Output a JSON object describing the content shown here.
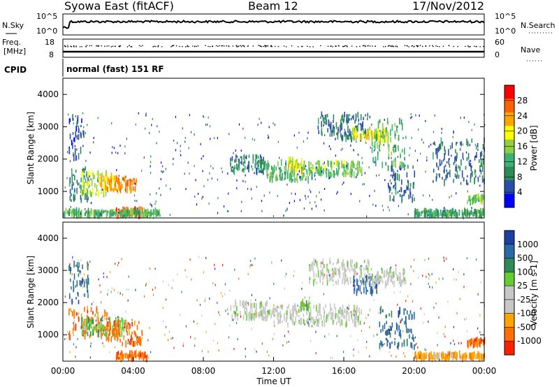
{
  "header": {
    "station": "Syowa East (fitACF)",
    "beam": "Beam 12",
    "date": "17/Nov/2012"
  },
  "noise_panel": {
    "left_label": "N.Sky",
    "left_ticks": [
      "10^5",
      "10^0"
    ],
    "right_label": "N.Search",
    "right_ticks": [
      "10^5",
      "10^0"
    ]
  },
  "freq_panel": {
    "left_label_1": "Freq.",
    "left_label_2": "[MHz]",
    "left_ticks": [
      "18",
      "8"
    ],
    "right_label": "Nave",
    "right_ticks": [
      "60",
      "0"
    ]
  },
  "cpid_panel": {
    "label": "CPID",
    "mode_text": "normal (fast) 151 RF"
  },
  "colors": {
    "scale_power": [
      "#0000ff",
      "#2b4fa8",
      "#2e8b57",
      "#3cb371",
      "#90d040",
      "#ffff00",
      "#ffa500",
      "#ff6000",
      "#ff0000"
    ],
    "scale_velocity": [
      "#1f3fa0",
      "#2b6aa8",
      "#2e8b57",
      "#66cc33",
      "#c8c8c8",
      "#c8c8c8",
      "#ffa500",
      "#ff7000",
      "#ff2000"
    ]
  },
  "chart_data": [
    {
      "type": "heatmap",
      "name": "Power",
      "ylabel": "Slant Range [km]",
      "xlabel": "",
      "yticks": [
        "1000",
        "2000",
        "3000",
        "4000"
      ],
      "ylim": [
        180,
        4500
      ],
      "colorbar_label": "Power [dB]",
      "colorbar_ticks": [
        "4",
        "8",
        "12",
        "16",
        "20",
        "24",
        "28"
      ],
      "colorbar_range": [
        0,
        30
      ],
      "regions": [
        {
          "t": [
            0.3,
            1.5
          ],
          "r": [
            700,
            1800
          ],
          "v": 8
        },
        {
          "t": [
            0.3,
            1.2
          ],
          "r": [
            2000,
            3300
          ],
          "v": 4
        },
        {
          "t": [
            1.0,
            2.5
          ],
          "r": [
            900,
            1600
          ],
          "v": 16
        },
        {
          "t": [
            2.0,
            3.0
          ],
          "r": [
            1000,
            1500
          ],
          "v": 20
        },
        {
          "t": [
            2.5,
            4.2
          ],
          "r": [
            1000,
            1400
          ],
          "v": 24
        },
        {
          "t": [
            3.0,
            4.5
          ],
          "r": [
            250,
            450
          ],
          "v": 28
        },
        {
          "t": [
            0.0,
            5.5
          ],
          "r": [
            250,
            400
          ],
          "v": 12
        },
        {
          "t": [
            9.5,
            11.5
          ],
          "r": [
            1600,
            2100
          ],
          "v": 8
        },
        {
          "t": [
            11.5,
            14.0
          ],
          "r": [
            1300,
            1900
          ],
          "v": 12
        },
        {
          "t": [
            12.8,
            13.6
          ],
          "r": [
            1600,
            2000
          ],
          "v": 18
        },
        {
          "t": [
            14.0,
            17.0
          ],
          "r": [
            1500,
            1900
          ],
          "v": 14
        },
        {
          "t": [
            14.5,
            17.5
          ],
          "r": [
            2600,
            3400
          ],
          "v": 6
        },
        {
          "t": [
            16.5,
            18.5
          ],
          "r": [
            2600,
            2900
          ],
          "v": 18
        },
        {
          "t": [
            17.5,
            19.5
          ],
          "r": [
            1800,
            3200
          ],
          "v": 12
        },
        {
          "t": [
            18.5,
            20.0
          ],
          "r": [
            700,
            1800
          ],
          "v": 6
        },
        {
          "t": [
            20.0,
            24.0
          ],
          "r": [
            250,
            400
          ],
          "v": 10
        },
        {
          "t": [
            21.0,
            24.0
          ],
          "r": [
            1200,
            2600
          ],
          "v": 6
        },
        {
          "t": [
            23.0,
            24.0
          ],
          "r": [
            650,
            850
          ],
          "v": 14
        }
      ]
    },
    {
      "type": "heatmap",
      "name": "Velocity",
      "ylabel": "Slant Range [km]",
      "xlabel": "Time UT",
      "xticks": [
        "00:00",
        "04:00",
        "08:00",
        "12:00",
        "16:00",
        "20:00",
        "00:00"
      ],
      "yticks": [
        "1000",
        "2000",
        "3000",
        "4000"
      ],
      "ylim": [
        180,
        4500
      ],
      "colorbar_label": "Velocity [m s-1]",
      "colorbar_ticks": [
        "1000",
        "500",
        "100",
        "25",
        "-25",
        "-100",
        "-500",
        "-1000"
      ],
      "regions": [
        {
          "t": [
            0.3,
            2.5
          ],
          "r": [
            900,
            1800
          ],
          "v": "-500"
        },
        {
          "t": [
            1.0,
            3.5
          ],
          "r": [
            1000,
            1500
          ],
          "v": "100"
        },
        {
          "t": [
            2.5,
            4.5
          ],
          "r": [
            700,
            1400
          ],
          "v": "-500"
        },
        {
          "t": [
            3.0,
            4.8
          ],
          "r": [
            250,
            450
          ],
          "v": "-500"
        },
        {
          "t": [
            0.3,
            1.5
          ],
          "r": [
            2000,
            3200
          ],
          "v": "500"
        },
        {
          "t": [
            9.5,
            12.0
          ],
          "r": [
            1500,
            2000
          ],
          "v": "25"
        },
        {
          "t": [
            12.0,
            17.0
          ],
          "r": [
            1300,
            1900
          ],
          "v": "25"
        },
        {
          "t": [
            13.5,
            14.0
          ],
          "r": [
            1800,
            2000
          ],
          "v": "100"
        },
        {
          "t": [
            14.0,
            17.5
          ],
          "r": [
            2600,
            3300
          ],
          "v": "25"
        },
        {
          "t": [
            16.5,
            18.0
          ],
          "r": [
            2300,
            2800
          ],
          "v": "500"
        },
        {
          "t": [
            17.5,
            19.5
          ],
          "r": [
            2500,
            3000
          ],
          "v": "25"
        },
        {
          "t": [
            18.0,
            20.0
          ],
          "r": [
            600,
            1800
          ],
          "v": "500"
        },
        {
          "t": [
            20.0,
            24.0
          ],
          "r": [
            250,
            400
          ],
          "v": "-100"
        },
        {
          "t": [
            23.0,
            24.0
          ],
          "r": [
            650,
            850
          ],
          "v": "-500"
        }
      ]
    }
  ]
}
